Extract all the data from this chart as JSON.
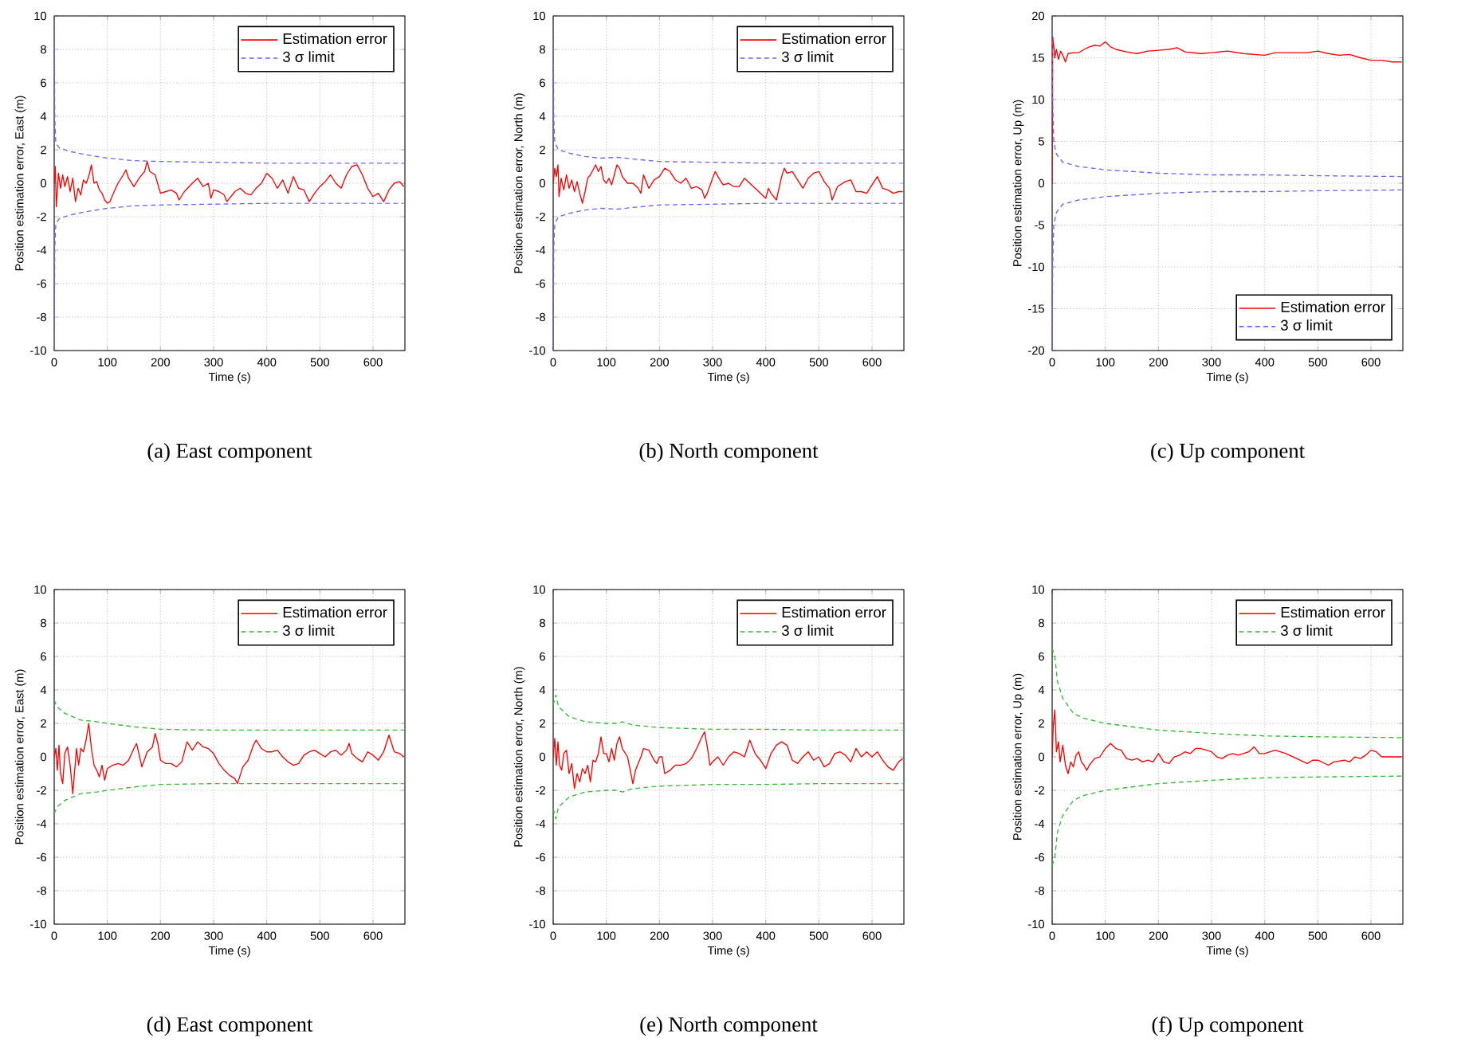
{
  "chart_data": [
    {
      "type": "line",
      "title": "(a) East component",
      "xlabel": "Time (s)",
      "ylabel": "Position estimation error, East  (m)",
      "xlim": [
        0,
        660
      ],
      "ylim": [
        -10,
        10
      ],
      "xticks": [
        0,
        100,
        200,
        300,
        400,
        500,
        600
      ],
      "yticks": [
        -10,
        -8,
        -6,
        -4,
        -2,
        0,
        2,
        4,
        6,
        8,
        10
      ],
      "grid": true,
      "legend": "top right",
      "series": [
        {
          "name": "Estimation error",
          "color": "#ff0000",
          "line_style": "solid",
          "x": [
            0,
            2,
            4,
            8,
            12,
            16,
            20,
            25,
            30,
            35,
            40,
            45,
            50,
            55,
            60,
            65,
            70,
            75,
            80,
            85,
            90,
            95,
            100,
            105,
            110,
            120,
            130,
            135,
            140,
            150,
            160,
            170,
            175,
            180,
            190,
            200,
            210,
            220,
            230,
            235,
            245,
            260,
            270,
            280,
            290,
            295,
            300,
            310,
            320,
            325,
            340,
            350,
            360,
            370,
            380,
            390,
            400,
            410,
            420,
            430,
            440,
            450,
            460,
            470,
            480,
            490,
            500,
            510,
            520,
            530,
            540,
            550,
            560,
            570,
            580,
            590,
            600,
            610,
            620,
            630,
            640,
            650,
            658
          ],
          "values": [
            0,
            1.0,
            -1.4,
            0.6,
            -0.3,
            0.5,
            -0.2,
            0.4,
            -0.5,
            0.3,
            -1.1,
            -0.3,
            -0.7,
            0.2,
            0.0,
            0.4,
            1.1,
            0.0,
            0.1,
            -0.4,
            -0.6,
            -1.0,
            -1.2,
            -1.1,
            -0.7,
            0.0,
            0.5,
            0.8,
            0.3,
            -0.2,
            0.3,
            0.7,
            1.3,
            0.7,
            0.5,
            -0.6,
            -0.5,
            -0.4,
            -0.6,
            -1.0,
            -0.5,
            0.0,
            0.3,
            -0.2,
            0.0,
            -0.9,
            -0.4,
            -0.5,
            -0.7,
            -1.1,
            -0.5,
            -0.3,
            -0.6,
            -0.7,
            -0.3,
            0.0,
            0.6,
            0.3,
            -0.3,
            0.2,
            -0.6,
            0.4,
            -0.3,
            -0.4,
            -1.1,
            -0.6,
            -0.2,
            0.1,
            0.5,
            0.0,
            -0.3,
            0.5,
            1.0,
            1.1,
            0.5,
            -0.3,
            -0.8,
            -0.6,
            -1.1,
            -0.4,
            0.0,
            0.1,
            -0.2
          ]
        },
        {
          "name": "3 σ limit",
          "color": "#6666ff",
          "line_style": "dashed",
          "x": [
            0,
            1,
            3,
            10,
            30,
            60,
            100,
            150,
            200,
            300,
            400,
            500,
            658
          ],
          "values": [
            10,
            4,
            2.4,
            2.1,
            1.9,
            1.7,
            1.5,
            1.35,
            1.3,
            1.25,
            1.2,
            1.2,
            1.2
          ]
        },
        {
          "color": "#6666ff",
          "line_style": "dashed",
          "x": [
            0,
            1,
            3,
            10,
            30,
            60,
            100,
            150,
            200,
            300,
            400,
            500,
            658
          ],
          "values": [
            -10,
            -4,
            -2.4,
            -2.1,
            -1.9,
            -1.7,
            -1.5,
            -1.35,
            -1.3,
            -1.25,
            -1.2,
            -1.2,
            -1.2
          ]
        }
      ]
    },
    {
      "type": "line",
      "title": "(b) North component",
      "xlabel": "Time (s)",
      "ylabel": "Position estimation error, North (m)",
      "xlim": [
        0,
        660
      ],
      "ylim": [
        -10,
        10
      ],
      "xticks": [
        0,
        100,
        200,
        300,
        400,
        500,
        600
      ],
      "yticks": [
        -10,
        -8,
        -6,
        -4,
        -2,
        0,
        2,
        4,
        6,
        8,
        10
      ],
      "grid": true,
      "legend": "top right",
      "series": [
        {
          "name": "Estimation error",
          "color": "#ff0000",
          "line_style": "solid",
          "x": [
            0,
            3,
            6,
            9,
            11,
            15,
            20,
            25,
            30,
            35,
            40,
            45,
            50,
            55,
            60,
            65,
            70,
            75,
            80,
            85,
            90,
            95,
            100,
            105,
            110,
            115,
            120,
            125,
            130,
            140,
            150,
            160,
            165,
            170,
            175,
            180,
            190,
            200,
            210,
            220,
            230,
            240,
            250,
            260,
            270,
            280,
            285,
            290,
            300,
            305,
            310,
            320,
            330,
            340,
            350,
            360,
            370,
            380,
            390,
            400,
            405,
            410,
            420,
            425,
            430,
            435,
            440,
            450,
            460,
            470,
            480,
            490,
            500,
            510,
            520,
            525,
            535,
            550,
            560,
            570,
            580,
            590,
            600,
            610,
            620,
            630,
            640,
            650,
            658
          ],
          "values": [
            0,
            0.9,
            0.4,
            1.1,
            -0.8,
            0.3,
            -0.4,
            0.5,
            -0.3,
            0.2,
            -0.5,
            0.1,
            -0.6,
            -1.2,
            -0.5,
            0.3,
            0.5,
            0.8,
            1.1,
            0.7,
            1.0,
            0.2,
            0.0,
            0.3,
            -0.1,
            0.5,
            1.1,
            0.9,
            0.4,
            0.0,
            0.0,
            -0.3,
            -0.6,
            0.5,
            0.1,
            -0.3,
            0.2,
            0.4,
            0.9,
            0.7,
            0.2,
            0.0,
            0.3,
            -0.3,
            -0.2,
            -0.4,
            -0.9,
            -0.6,
            0.3,
            0.7,
            0.4,
            -0.1,
            0.0,
            -0.2,
            -0.2,
            0.3,
            0.0,
            -0.3,
            -0.6,
            -0.9,
            -0.3,
            -0.6,
            -1.0,
            -0.3,
            0.4,
            0.9,
            0.6,
            0.7,
            0.2,
            -0.3,
            0.3,
            0.6,
            0.7,
            0.1,
            -0.3,
            -1.0,
            -0.2,
            0.1,
            0.2,
            -0.5,
            -0.5,
            -0.6,
            -0.1,
            0.4,
            -0.3,
            -0.4,
            -0.6,
            -0.5,
            -0.5
          ]
        },
        {
          "name": "3 σ limit",
          "color": "#6666ff",
          "line_style": "dashed",
          "x": [
            0,
            1,
            3,
            10,
            30,
            60,
            90,
            120,
            150,
            200,
            300,
            400,
            500,
            658
          ],
          "values": [
            10,
            4,
            2.4,
            2.0,
            1.8,
            1.6,
            1.5,
            1.55,
            1.45,
            1.3,
            1.25,
            1.2,
            1.2,
            1.2
          ]
        },
        {
          "color": "#6666ff",
          "line_style": "dashed",
          "x": [
            0,
            1,
            3,
            10,
            30,
            60,
            90,
            120,
            150,
            200,
            300,
            400,
            500,
            658
          ],
          "values": [
            -10,
            -4,
            -2.4,
            -2.0,
            -1.8,
            -1.6,
            -1.5,
            -1.55,
            -1.45,
            -1.3,
            -1.25,
            -1.2,
            -1.2,
            -1.2
          ]
        }
      ]
    },
    {
      "type": "line",
      "title": "(c) Up component",
      "xlabel": "Time (s)",
      "ylabel": "Position estimation error, Up    (m)",
      "xlim": [
        0,
        660
      ],
      "ylim": [
        -20,
        20
      ],
      "xticks": [
        0,
        100,
        200,
        300,
        400,
        500,
        600
      ],
      "yticks": [
        -20,
        -15,
        -10,
        -5,
        0,
        5,
        10,
        15,
        20
      ],
      "grid": true,
      "legend": "bottom right",
      "series": [
        {
          "name": "Estimation error",
          "color": "#ff0000",
          "line_style": "solid",
          "x": [
            0,
            1,
            3,
            5,
            8,
            12,
            16,
            20,
            25,
            30,
            40,
            50,
            60,
            70,
            80,
            90,
            100,
            110,
            120,
            140,
            160,
            180,
            200,
            220,
            235,
            250,
            280,
            300,
            330,
            360,
            400,
            420,
            450,
            480,
            500,
            520,
            540,
            560,
            580,
            600,
            620,
            640,
            658
          ],
          "values": [
            0,
            17.5,
            16.5,
            15.0,
            16.0,
            14.8,
            15.8,
            15.3,
            14.5,
            15.5,
            15.6,
            15.6,
            16.0,
            16.3,
            16.5,
            16.4,
            16.9,
            16.3,
            16.0,
            15.7,
            15.5,
            15.8,
            15.9,
            16.0,
            16.2,
            15.7,
            15.5,
            15.6,
            15.8,
            15.5,
            15.3,
            15.6,
            15.6,
            15.6,
            15.8,
            15.5,
            15.3,
            15.4,
            15.0,
            14.7,
            14.7,
            14.5,
            14.5
          ]
        },
        {
          "name": "3 σ limit",
          "color": "#6666ff",
          "line_style": "dashed",
          "x": [
            0,
            1,
            3,
            8,
            20,
            50,
            100,
            200,
            300,
            400,
            500,
            658
          ],
          "values": [
            20,
            10,
            5,
            3.5,
            2.5,
            2.0,
            1.6,
            1.2,
            1.0,
            1.0,
            0.9,
            0.8
          ]
        },
        {
          "color": "#6666ff",
          "line_style": "dashed",
          "x": [
            0,
            1,
            3,
            8,
            20,
            50,
            100,
            200,
            300,
            400,
            500,
            658
          ],
          "values": [
            -20,
            -10,
            -5,
            -3.5,
            -2.5,
            -2.0,
            -1.6,
            -1.2,
            -1.0,
            -1.0,
            -0.9,
            -0.8
          ]
        }
      ]
    },
    {
      "type": "line",
      "title": "(d) East component",
      "xlabel": "Time (s)",
      "ylabel": "Position estimation error, East  (m)",
      "xlim": [
        0,
        660
      ],
      "ylim": [
        -10,
        10
      ],
      "xticks": [
        0,
        100,
        200,
        300,
        400,
        500,
        600
      ],
      "yticks": [
        -10,
        -8,
        -6,
        -4,
        -2,
        0,
        2,
        4,
        6,
        8,
        10
      ],
      "grid": true,
      "legend": "top right",
      "series": [
        {
          "name": "Estimation error",
          "color": "#ff0000",
          "line_style": "solid",
          "x": [
            0,
            3,
            6,
            9,
            12,
            16,
            20,
            25,
            30,
            35,
            38,
            42,
            46,
            50,
            55,
            60,
            65,
            70,
            75,
            80,
            85,
            90,
            95,
            100,
            110,
            120,
            130,
            140,
            150,
            155,
            165,
            175,
            185,
            190,
            195,
            200,
            210,
            220,
            230,
            240,
            250,
            260,
            270,
            280,
            290,
            300,
            310,
            320,
            330,
            340,
            345,
            355,
            365,
            375,
            380,
            390,
            400,
            410,
            420,
            430,
            440,
            450,
            460,
            470,
            480,
            490,
            500,
            510,
            520,
            530,
            540,
            550,
            555,
            560,
            570,
            580,
            590,
            600,
            610,
            620,
            630,
            640,
            650,
            658
          ],
          "values": [
            0,
            0.5,
            -0.8,
            0.7,
            -1.0,
            -1.6,
            0.2,
            0.6,
            -0.5,
            -2.2,
            -1.0,
            0.5,
            -0.5,
            0.5,
            0.3,
            1.0,
            2.0,
            0.5,
            -0.5,
            -0.8,
            -1.2,
            -0.5,
            -1.4,
            -0.7,
            -0.5,
            -0.4,
            -0.5,
            -0.2,
            0.5,
            0.8,
            -0.6,
            0.3,
            0.6,
            1.4,
            0.8,
            -0.2,
            -0.4,
            -0.4,
            -0.6,
            -0.3,
            0.9,
            0.4,
            0.9,
            0.6,
            0.5,
            0.2,
            -0.4,
            -0.8,
            -1.1,
            -1.3,
            -1.6,
            -0.6,
            -0.2,
            0.7,
            1.0,
            0.5,
            0.3,
            0.3,
            0.4,
            0.0,
            -0.3,
            -0.5,
            -0.4,
            0.1,
            0.3,
            0.4,
            0.2,
            0.0,
            0.3,
            0.4,
            0.1,
            0.4,
            0.8,
            0.2,
            -0.1,
            -0.3,
            0.3,
            0.1,
            -0.2,
            0.3,
            1.3,
            0.3,
            0.2,
            0.0
          ]
        },
        {
          "name": "3 σ limit",
          "color": "#33bb33",
          "line_style": "dashed",
          "x": [
            0,
            5,
            20,
            50,
            80,
            100,
            150,
            200,
            300,
            400,
            500,
            658
          ],
          "values": [
            3.4,
            3.0,
            2.6,
            2.2,
            2.1,
            2.0,
            1.8,
            1.65,
            1.6,
            1.6,
            1.6,
            1.6
          ]
        },
        {
          "color": "#33bb33",
          "line_style": "dashed",
          "x": [
            0,
            5,
            20,
            50,
            80,
            100,
            150,
            200,
            300,
            400,
            500,
            658
          ],
          "values": [
            -3.4,
            -3.0,
            -2.6,
            -2.2,
            -2.1,
            -2.0,
            -1.8,
            -1.65,
            -1.6,
            -1.6,
            -1.6,
            -1.6
          ]
        }
      ]
    },
    {
      "type": "line",
      "title": "(e) North component",
      "xlabel": "Time (s)",
      "ylabel": "Position estimation error, North (m)",
      "xlim": [
        0,
        660
      ],
      "ylim": [
        -10,
        10
      ],
      "xticks": [
        0,
        100,
        200,
        300,
        400,
        500,
        600
      ],
      "yticks": [
        -10,
        -8,
        -6,
        -4,
        -2,
        0,
        2,
        4,
        6,
        8,
        10
      ],
      "grid": true,
      "legend": "top right",
      "series": [
        {
          "name": "Estimation error",
          "color": "#ff0000",
          "line_style": "solid",
          "x": [
            0,
            3,
            6,
            9,
            12,
            16,
            20,
            25,
            30,
            35,
            40,
            45,
            50,
            55,
            60,
            65,
            70,
            75,
            80,
            85,
            90,
            95,
            100,
            105,
            110,
            115,
            120,
            125,
            130,
            140,
            145,
            150,
            155,
            165,
            170,
            180,
            190,
            195,
            200,
            205,
            210,
            220,
            230,
            240,
            250,
            260,
            270,
            280,
            285,
            290,
            295,
            300,
            310,
            320,
            330,
            340,
            350,
            360,
            370,
            380,
            390,
            400,
            410,
            420,
            430,
            440,
            450,
            460,
            470,
            480,
            490,
            500,
            510,
            520,
            530,
            540,
            550,
            560,
            570,
            580,
            590,
            600,
            610,
            620,
            630,
            640,
            650,
            658
          ],
          "values": [
            0,
            1.1,
            -0.5,
            0.9,
            -0.5,
            -0.8,
            0.2,
            0.4,
            -1.0,
            -0.4,
            -1.9,
            -1.0,
            -1.5,
            -0.7,
            -1.0,
            -0.5,
            -1.5,
            -0.2,
            -0.3,
            0.2,
            1.2,
            0.2,
            0.2,
            -0.3,
            0.5,
            -0.2,
            0.8,
            1.2,
            0.5,
            0.0,
            -0.8,
            -1.6,
            -0.8,
            0.0,
            0.5,
            0.4,
            -0.2,
            -0.4,
            0.0,
            0.0,
            -1.0,
            -0.8,
            -0.5,
            -0.5,
            -0.4,
            -0.1,
            0.5,
            1.2,
            1.5,
            0.6,
            -0.5,
            -0.3,
            0.0,
            -0.5,
            0.0,
            0.3,
            0.2,
            0.0,
            1.0,
            0.2,
            -0.2,
            -0.7,
            0.2,
            0.7,
            0.9,
            0.7,
            -0.2,
            -0.4,
            0.0,
            0.3,
            -0.2,
            0.0,
            -0.6,
            -0.4,
            0.2,
            0.3,
            0.1,
            -0.3,
            0.5,
            0.0,
            0.3,
            0.0,
            0.3,
            -0.2,
            -0.6,
            -0.8,
            -0.3,
            -0.1
          ]
        },
        {
          "name": "3 σ limit",
          "color": "#33bb33",
          "line_style": "dashed",
          "x": [
            0,
            5,
            10,
            30,
            60,
            100,
            120,
            130,
            150,
            200,
            300,
            400,
            500,
            658
          ],
          "values": [
            3.1,
            3.7,
            3.0,
            2.4,
            2.1,
            2.0,
            2.0,
            2.1,
            1.9,
            1.75,
            1.65,
            1.65,
            1.6,
            1.6
          ]
        },
        {
          "color": "#33bb33",
          "line_style": "dashed",
          "x": [
            0,
            5,
            10,
            30,
            60,
            100,
            120,
            130,
            150,
            200,
            300,
            400,
            500,
            658
          ],
          "values": [
            -3.1,
            -3.7,
            -3.0,
            -2.4,
            -2.1,
            -2.0,
            -2.0,
            -2.1,
            -1.9,
            -1.75,
            -1.65,
            -1.65,
            -1.6,
            -1.6
          ]
        }
      ]
    },
    {
      "type": "line",
      "title": "(f) Up component",
      "xlabel": "Time (s)",
      "ylabel": "Position estimation error, Up    (m)",
      "xlim": [
        0,
        660
      ],
      "ylim": [
        -10,
        10
      ],
      "xticks": [
        0,
        100,
        200,
        300,
        400,
        500,
        600
      ],
      "yticks": [
        -10,
        -8,
        -6,
        -4,
        -2,
        0,
        2,
        4,
        6,
        8,
        10
      ],
      "grid": true,
      "legend": "top right",
      "series": [
        {
          "name": "Estimation error",
          "color": "#ff0000",
          "line_style": "solid",
          "x": [
            0,
            2,
            5,
            8,
            12,
            15,
            20,
            25,
            30,
            35,
            40,
            45,
            50,
            55,
            60,
            65,
            70,
            80,
            90,
            100,
            110,
            120,
            130,
            140,
            150,
            160,
            170,
            180,
            190,
            200,
            210,
            220,
            230,
            240,
            250,
            260,
            270,
            280,
            290,
            300,
            310,
            320,
            330,
            340,
            350,
            360,
            370,
            380,
            390,
            400,
            410,
            420,
            440,
            460,
            480,
            490,
            500,
            520,
            530,
            550,
            560,
            570,
            580,
            590,
            600,
            610,
            620,
            640,
            658
          ],
          "values": [
            0,
            1.8,
            2.8,
            0.3,
            0.9,
            -0.3,
            0.7,
            -0.5,
            -1.0,
            -0.3,
            -0.6,
            0.1,
            0.3,
            -0.3,
            -0.5,
            -0.8,
            -0.5,
            -0.1,
            0.0,
            0.5,
            0.8,
            0.5,
            0.4,
            -0.1,
            -0.2,
            -0.1,
            -0.3,
            -0.2,
            -0.3,
            0.2,
            -0.3,
            -0.4,
            0.0,
            0.1,
            0.3,
            0.2,
            0.5,
            0.5,
            0.4,
            0.3,
            0.0,
            -0.1,
            0.1,
            0.2,
            0.1,
            0.2,
            0.3,
            0.6,
            0.2,
            0.2,
            0.3,
            0.4,
            0.2,
            -0.1,
            -0.4,
            -0.2,
            -0.2,
            -0.5,
            -0.3,
            -0.2,
            -0.3,
            0.0,
            -0.1,
            0.1,
            0.4,
            0.3,
            0.0,
            0.0,
            0.0
          ]
        },
        {
          "name": "3 σ limit",
          "color": "#33bb33",
          "line_style": "dashed",
          "x": [
            0,
            5,
            10,
            20,
            40,
            60,
            100,
            150,
            200,
            300,
            400,
            500,
            658
          ],
          "values": [
            6.5,
            6.0,
            4.5,
            3.5,
            2.6,
            2.3,
            2.0,
            1.8,
            1.6,
            1.4,
            1.25,
            1.2,
            1.15
          ]
        },
        {
          "color": "#33bb33",
          "line_style": "dashed",
          "x": [
            0,
            5,
            10,
            20,
            40,
            60,
            100,
            150,
            200,
            300,
            400,
            500,
            658
          ],
          "values": [
            -6.5,
            -6.0,
            -4.5,
            -3.5,
            -2.6,
            -2.3,
            -2.0,
            -1.8,
            -1.6,
            -1.4,
            -1.25,
            -1.2,
            -1.15
          ]
        }
      ]
    }
  ]
}
